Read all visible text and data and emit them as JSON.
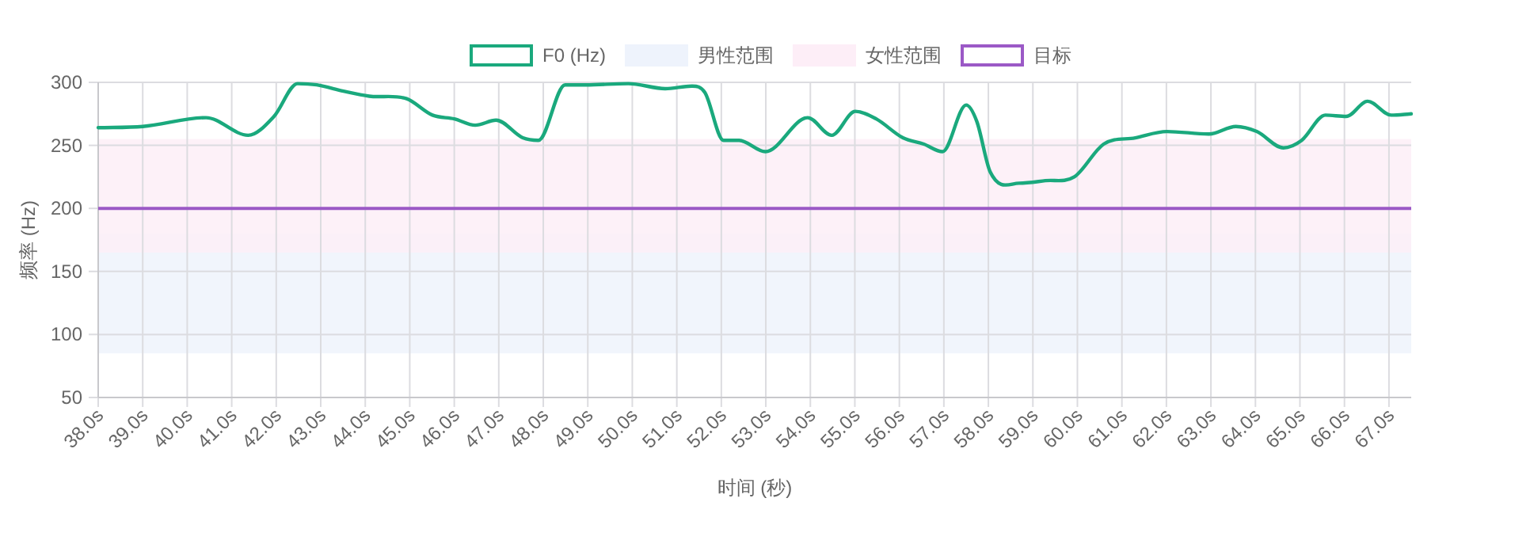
{
  "chart_data": {
    "type": "line",
    "xlabel": "时间 (秒)",
    "ylabel": "频率 (Hz)",
    "xlim": [
      38,
      67.5
    ],
    "ylim": [
      50,
      300
    ],
    "xticks": [
      {
        "value": 38,
        "label": "38.0s"
      },
      {
        "value": 39,
        "label": "39.0s"
      },
      {
        "value": 40,
        "label": "40.0s"
      },
      {
        "value": 41,
        "label": "41.0s"
      },
      {
        "value": 42,
        "label": "42.0s"
      },
      {
        "value": 43,
        "label": "43.0s"
      },
      {
        "value": 44,
        "label": "44.0s"
      },
      {
        "value": 45,
        "label": "45.0s"
      },
      {
        "value": 46,
        "label": "46.0s"
      },
      {
        "value": 47,
        "label": "47.0s"
      },
      {
        "value": 48,
        "label": "48.0s"
      },
      {
        "value": 49,
        "label": "49.0s"
      },
      {
        "value": 50,
        "label": "50.0s"
      },
      {
        "value": 51,
        "label": "51.0s"
      },
      {
        "value": 52,
        "label": "52.0s"
      },
      {
        "value": 53,
        "label": "53.0s"
      },
      {
        "value": 54,
        "label": "54.0s"
      },
      {
        "value": 55,
        "label": "55.0s"
      },
      {
        "value": 56,
        "label": "56.0s"
      },
      {
        "value": 57,
        "label": "57.0s"
      },
      {
        "value": 58,
        "label": "58.0s"
      },
      {
        "value": 59,
        "label": "59.0s"
      },
      {
        "value": 60,
        "label": "60.0s"
      },
      {
        "value": 61,
        "label": "61.0s"
      },
      {
        "value": 62,
        "label": "62.0s"
      },
      {
        "value": 63,
        "label": "63.0s"
      },
      {
        "value": 64,
        "label": "64.0s"
      },
      {
        "value": 65,
        "label": "65.0s"
      },
      {
        "value": 66,
        "label": "66.0s"
      },
      {
        "value": 67,
        "label": "67.0s"
      }
    ],
    "yticks": [
      50,
      100,
      150,
      200,
      250,
      300
    ],
    "grid": true,
    "legend": "top",
    "marker": "none",
    "line_style": "solid",
    "series": [
      {
        "name": "F0 (Hz)",
        "color": "#1aa97d",
        "x": [
          38.0,
          39.0,
          40.42,
          41.37,
          41.95,
          42.48,
          42.91,
          43.51,
          44.09,
          44.93,
          45.51,
          46.0,
          46.47,
          46.94,
          47.54,
          47.89,
          48.49,
          48.96,
          49.91,
          50.74,
          51.33,
          51.63,
          52.05,
          52.4,
          52.99,
          53.94,
          54.48,
          55.01,
          55.48,
          56.08,
          56.55,
          56.97,
          57.5,
          57.74,
          58.04,
          58.69,
          59.28,
          59.93,
          60.59,
          61.3,
          62.01,
          62.96,
          63.56,
          64.03,
          64.63,
          65.04,
          65.57,
          66.04,
          66.52,
          67.05,
          67.5
        ],
        "values": [
          264,
          265,
          272,
          258,
          273,
          299,
          298,
          293,
          289,
          287,
          274,
          271,
          266,
          270,
          256,
          254,
          298,
          298,
          299,
          295,
          297,
          292,
          254,
          254,
          245,
          272,
          258,
          277,
          271,
          256,
          251,
          245,
          282,
          269,
          229,
          220,
          222,
          225,
          251,
          256,
          261,
          259,
          265,
          261,
          248,
          254,
          274,
          273,
          285,
          274,
          275
        ]
      }
    ],
    "bands": [
      {
        "axis": "y",
        "from": 85,
        "to": 180,
        "label": "男性范围",
        "color": "#eef3fc"
      },
      {
        "axis": "y",
        "from": 165,
        "to": 255,
        "label": "女性范围",
        "color": "#fdeef7"
      }
    ],
    "ref_lines": [
      {
        "axis": "y",
        "value": 200,
        "label": "目标",
        "color": "#9b59c6"
      }
    ]
  }
}
